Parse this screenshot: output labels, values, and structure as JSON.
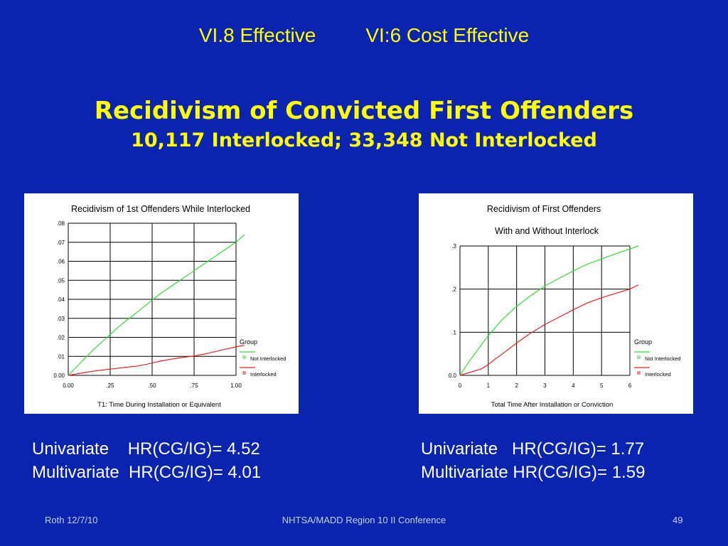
{
  "header": {
    "left": "VI.8 Effective",
    "right": "VI:6 Cost Effective"
  },
  "title": {
    "main": "Recidivism of Convicted First Offenders",
    "sub": "10,117 Interlocked; 33,348 Not Interlocked"
  },
  "colors": {
    "background": "#0a24b0",
    "title": "#ffff00",
    "not_interlocked": "#33dd33",
    "interlocked": "#ee2222"
  },
  "chart_data": [
    {
      "type": "line",
      "title": "Recidivism of 1st Offenders While Interlocked",
      "xlabel": "T1: Time During Installation or Equivalent",
      "ylabel": "",
      "xlim": [
        0,
        1.0
      ],
      "ylim": [
        0,
        0.08
      ],
      "x_ticks": [
        "0.00",
        ".25",
        ".50",
        ".75",
        "1.00"
      ],
      "y_ticks": [
        "0.00",
        ".01",
        ".02",
        ".03",
        ".04",
        ".05",
        ".06",
        ".07",
        ".08"
      ],
      "grid": true,
      "legend": {
        "title": "Group",
        "position": "right",
        "entries": [
          "Not Interlocked",
          "Interlocked"
        ]
      },
      "series": [
        {
          "name": "Not Interlocked",
          "color": "#33dd33",
          "x": [
            0,
            0.05,
            0.1,
            0.15,
            0.2,
            0.25,
            0.3,
            0.35,
            0.4,
            0.45,
            0.5,
            0.55,
            0.6,
            0.65,
            0.7,
            0.75,
            0.8,
            0.85,
            0.9,
            0.95,
            1.0,
            1.05
          ],
          "values": [
            0,
            0.0045,
            0.009,
            0.0135,
            0.0175,
            0.0215,
            0.0255,
            0.029,
            0.0325,
            0.036,
            0.0395,
            0.043,
            0.046,
            0.049,
            0.052,
            0.055,
            0.058,
            0.061,
            0.064,
            0.067,
            0.07,
            0.074
          ]
        },
        {
          "name": "Interlocked",
          "color": "#ee2222",
          "x": [
            0,
            0.05,
            0.1,
            0.15,
            0.2,
            0.25,
            0.3,
            0.35,
            0.4,
            0.45,
            0.5,
            0.55,
            0.6,
            0.65,
            0.7,
            0.75,
            0.8,
            0.85,
            0.9,
            0.95,
            1.0,
            1.05
          ],
          "values": [
            0,
            0.0008,
            0.0015,
            0.0022,
            0.0028,
            0.0033,
            0.0038,
            0.0043,
            0.0048,
            0.0055,
            0.0065,
            0.0075,
            0.0083,
            0.009,
            0.0096,
            0.0102,
            0.011,
            0.012,
            0.013,
            0.014,
            0.015,
            0.0158
          ]
        }
      ]
    },
    {
      "type": "line",
      "title": "Recidivism of First Offenders",
      "subtitle": "With and Without Interlock",
      "xlabel": "Total Time After Installation or Conviction",
      "ylabel": "",
      "xlim": [
        0,
        6
      ],
      "ylim": [
        0,
        0.3
      ],
      "x_ticks": [
        "0",
        "1",
        "2",
        "3",
        "4",
        "5",
        "6"
      ],
      "y_ticks": [
        "0.0",
        ".1",
        ".2",
        ".3"
      ],
      "grid": true,
      "legend": {
        "title": "Group",
        "position": "right",
        "entries": [
          "Not Interlocked",
          "Interlocked"
        ]
      },
      "series": [
        {
          "name": "Not Interlocked",
          "color": "#33dd33",
          "x": [
            0,
            0.25,
            0.5,
            0.75,
            1,
            1.5,
            2,
            2.5,
            3,
            3.5,
            4,
            4.5,
            5,
            5.5,
            6,
            6.3
          ],
          "values": [
            0,
            0.025,
            0.048,
            0.07,
            0.092,
            0.13,
            0.16,
            0.185,
            0.207,
            0.225,
            0.242,
            0.258,
            0.27,
            0.282,
            0.293,
            0.3
          ]
        },
        {
          "name": "Interlocked",
          "color": "#ee2222",
          "x": [
            0,
            0.25,
            0.5,
            0.75,
            1,
            1.25,
            1.5,
            2,
            2.5,
            3,
            3.5,
            4,
            4.5,
            5,
            5.5,
            6,
            6.3
          ],
          "values": [
            0,
            0.005,
            0.01,
            0.015,
            0.025,
            0.038,
            0.05,
            0.075,
            0.098,
            0.118,
            0.135,
            0.152,
            0.168,
            0.18,
            0.19,
            0.2,
            0.21
          ]
        }
      ]
    }
  ],
  "stats": {
    "left": {
      "univariate": "Univariate    HR(CG/IG)= 4.52",
      "multivariate": "Multivariate  HR(CG/IG)= 4.01"
    },
    "right": {
      "univariate": "Univariate   HR(CG/IG)= 1.77",
      "multivariate": "Multivariate HR(CG/IG)= 1.59"
    }
  },
  "footer": {
    "left": "Roth 12/7/10",
    "center": "NHTSA/MADD Region 10 II Conference",
    "right": "49"
  }
}
